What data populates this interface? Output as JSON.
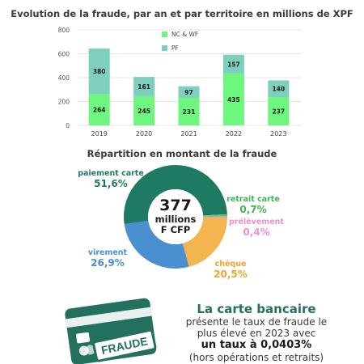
{
  "chart_data": [
    {
      "type": "bar",
      "stacked": true,
      "title": "Evolution de la fraude, par an et par territoire  en millions de XPF",
      "categories": [
        "2019",
        "2020",
        "2021",
        "2022",
        "2023"
      ],
      "series": [
        {
          "name": "NC & WF",
          "values": [
            264,
            245,
            231,
            435,
            237
          ],
          "color": "#6ef77e"
        },
        {
          "name": "PF",
          "values": [
            380,
            161,
            97,
            157,
            140
          ],
          "color": "#7fcfbe"
        }
      ],
      "yticks": [
        0,
        200,
        400,
        600,
        800
      ],
      "ylim": [
        0,
        800
      ],
      "grid": true,
      "legend": "top"
    },
    {
      "type": "pie",
      "donut": true,
      "title": "Répartition en montant de la fraude",
      "center": {
        "value": "377",
        "line1": "millions",
        "line2": "F CFP"
      },
      "slices": [
        {
          "label": "paiement carte",
          "value": 51.6,
          "display": "51,6%",
          "color": "#1f7a63"
        },
        {
          "label": "retrait carte",
          "value": 0.7,
          "display": "0,7%",
          "color": "#5ec96a"
        },
        {
          "label": "prélèvement",
          "value": 0.4,
          "display": "0,4%",
          "color": "#ee8fd3"
        },
        {
          "label": "chèque",
          "value": 20.5,
          "display": "20,5%",
          "color": "#f4b44f"
        },
        {
          "label": "virement",
          "value": 26.9,
          "display": "26,9%",
          "color": "#4a90d0"
        }
      ]
    }
  ],
  "card_stamp": "FRAUDE",
  "info": {
    "title": "La carte bancaire",
    "line1": "présente le taux de fraude le",
    "line2": "plus élevé en 2023 avec",
    "line3": "un taux à 0,0403%",
    "line4": "(hors opérations et retraits)"
  }
}
